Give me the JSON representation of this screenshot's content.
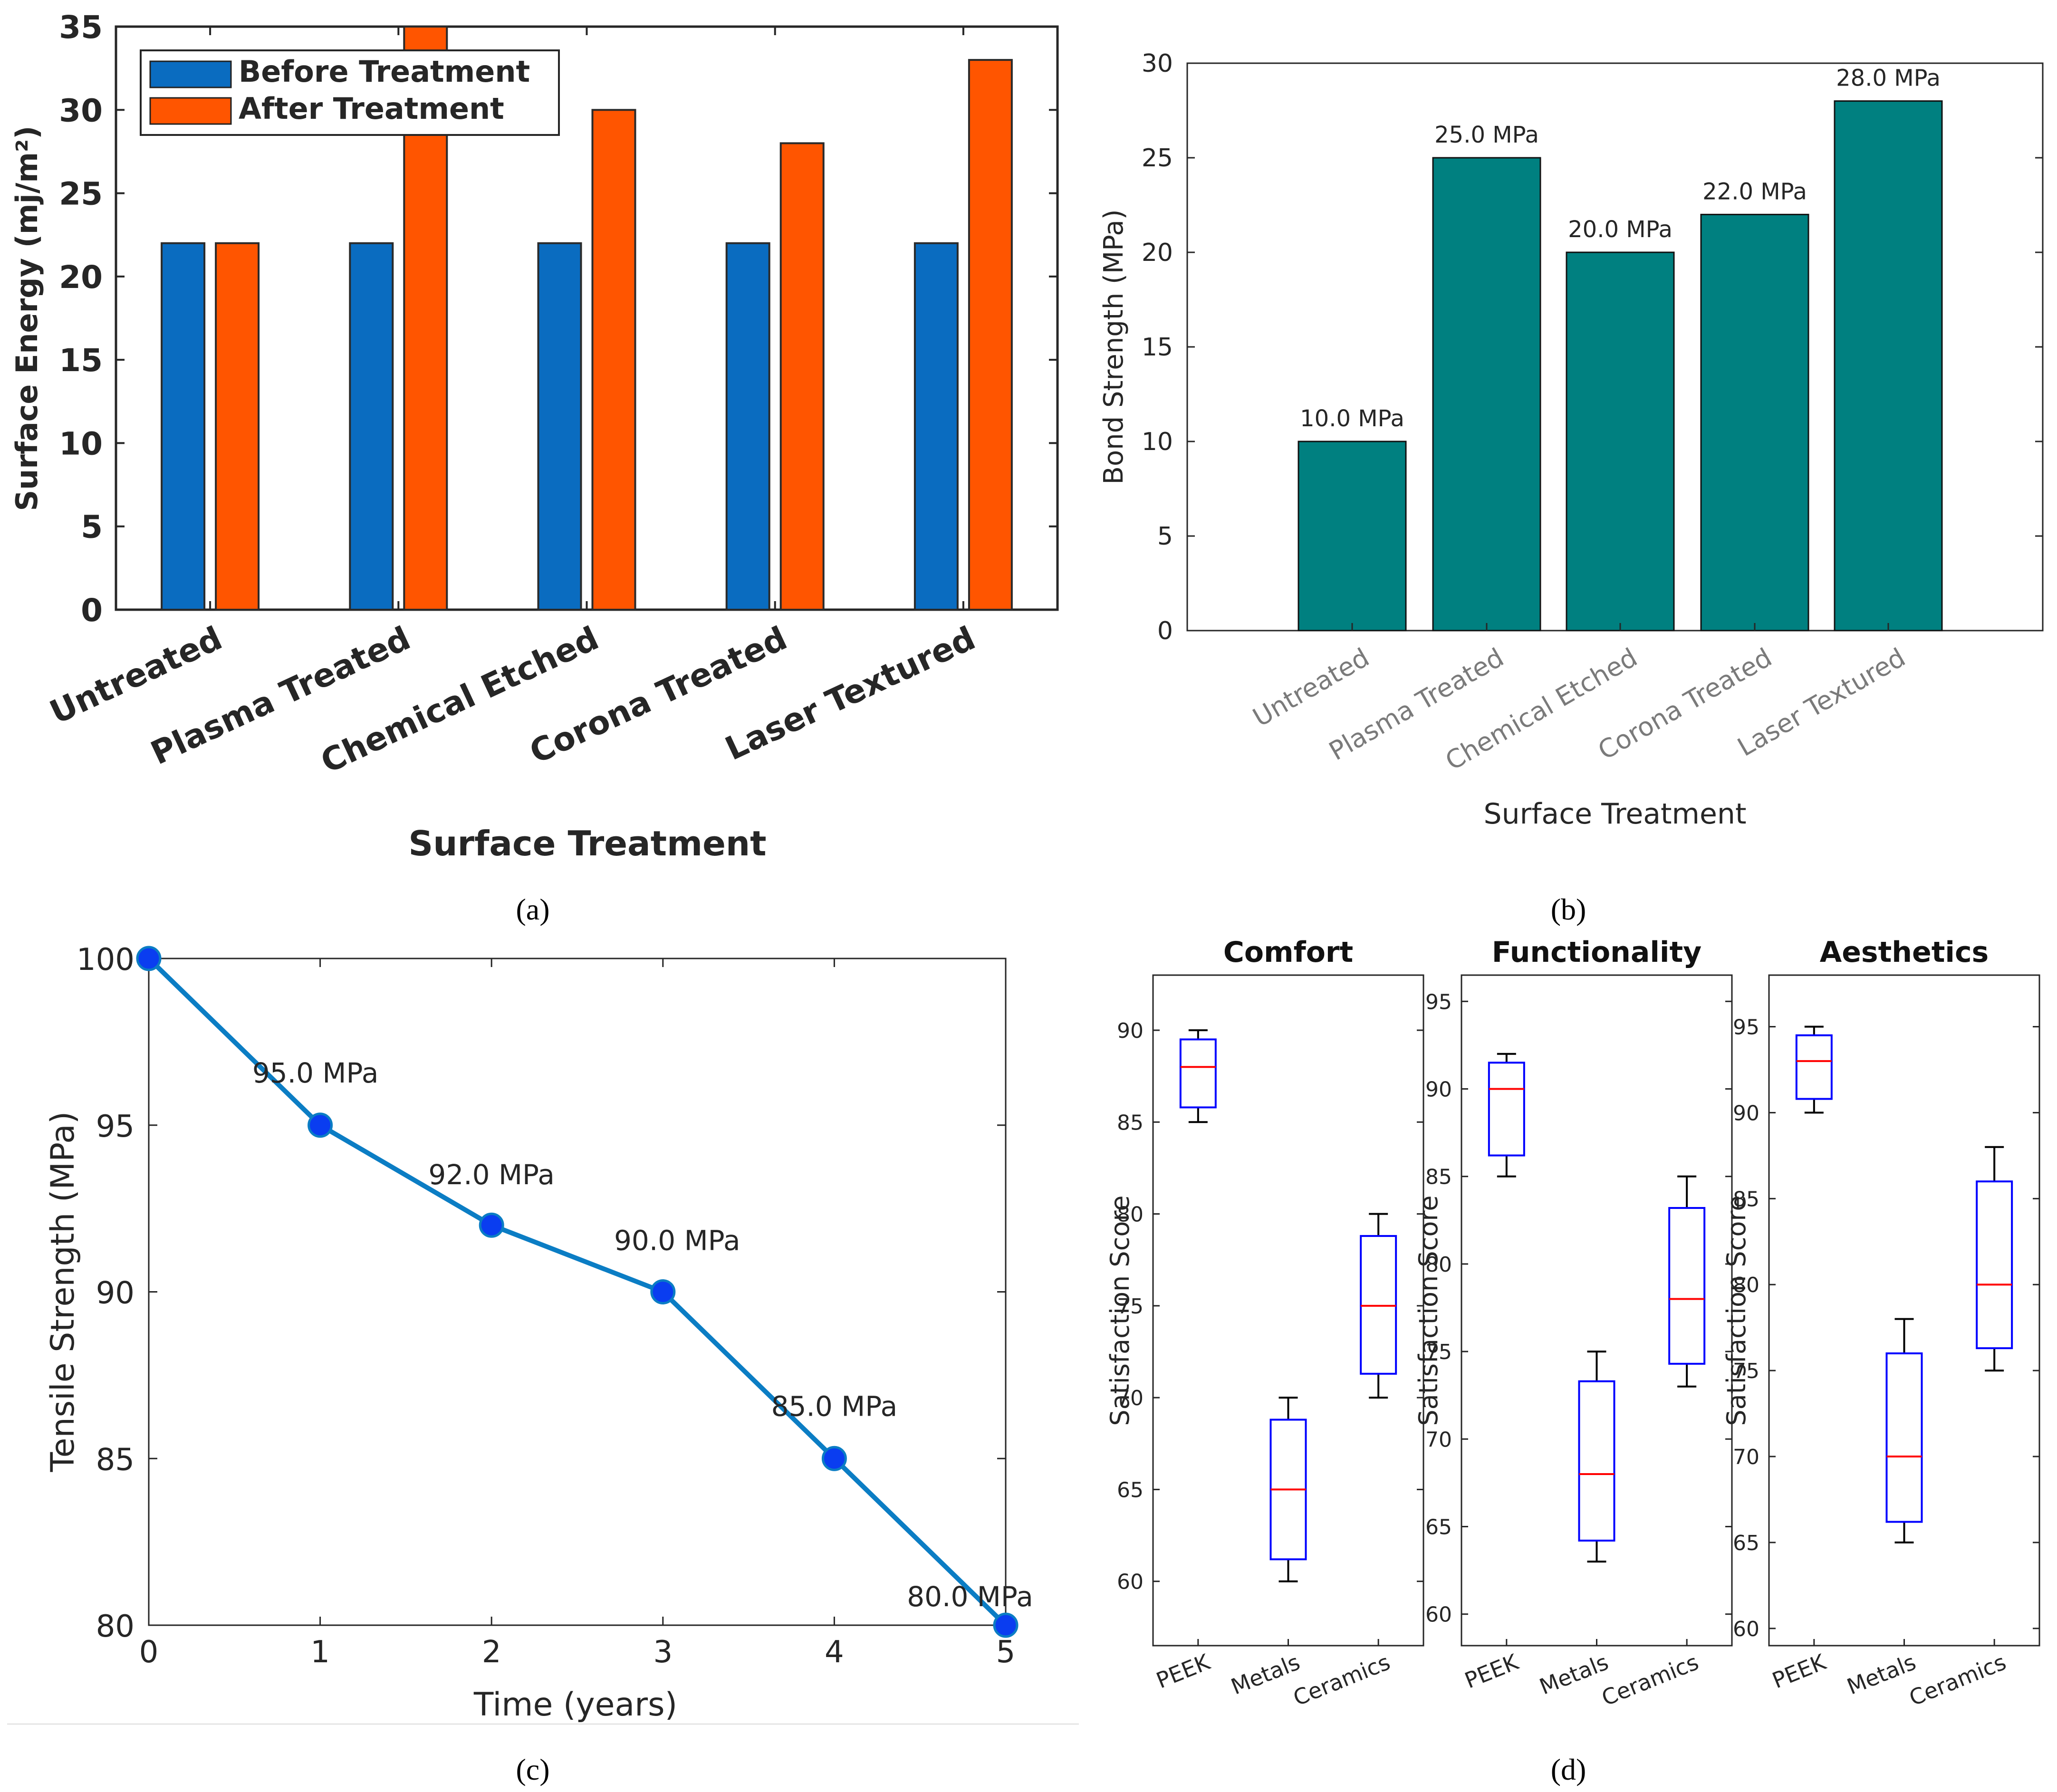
{
  "colors": {
    "before": "#0a6cc0",
    "after": "#ff5500",
    "bond": "#008080",
    "line": "#0b7dc4",
    "marker": "#0a3df0",
    "box": "#0000ff",
    "median": "#ff0000"
  },
  "panel_labels": {
    "a": "(a)",
    "b": "(b)",
    "c": "(c)",
    "d": "(d)"
  },
  "chart_data": [
    {
      "id": "a",
      "type": "bar",
      "title": "",
      "xlabel": "Surface Treatment",
      "ylabel": "Surface Energy (mj/m²)",
      "categories": [
        "Untreated",
        "Plasma Treated",
        "Chemical Etched",
        "Corona Treated",
        "Laser Textured"
      ],
      "series": [
        {
          "name": "Before Treatment",
          "values": [
            22,
            22,
            22,
            22,
            22
          ]
        },
        {
          "name": "After Treatment",
          "values": [
            22,
            35,
            30,
            28,
            33
          ]
        }
      ],
      "ylim": [
        0,
        35
      ],
      "yticks": [
        0,
        5,
        10,
        15,
        20,
        25,
        30,
        35
      ],
      "legend": "top-left"
    },
    {
      "id": "b",
      "type": "bar",
      "title": "",
      "xlabel": "Surface Treatment",
      "ylabel": "Bond Strength (MPa)",
      "categories": [
        "Untreated",
        "Plasma Treated",
        "Chemical Etched",
        "Corona Treated",
        "Laser Textured"
      ],
      "values": [
        10,
        25,
        20,
        22,
        28
      ],
      "data_labels": [
        "10.0 MPa",
        "25.0 MPa",
        "20.0 MPa",
        "22.0 MPa",
        "28.0 MPa"
      ],
      "ylim": [
        0,
        30
      ],
      "yticks": [
        0,
        5,
        10,
        15,
        20,
        25,
        30
      ]
    },
    {
      "id": "c",
      "type": "line",
      "title": "",
      "xlabel": "Time (years)",
      "ylabel": "Tensile Strength (MPa)",
      "x": [
        0,
        1,
        2,
        3,
        4,
        5
      ],
      "values": [
        100,
        95,
        92,
        90,
        85,
        80
      ],
      "data_labels": [
        "",
        "95.0 MPa",
        "92.0 MPa",
        "90.0 MPa",
        "85.0 MPa",
        "80.0 MPa"
      ],
      "xlim": [
        0,
        5
      ],
      "ylim": [
        80,
        100
      ],
      "xticks": [
        0,
        1,
        2,
        3,
        4,
        5
      ],
      "yticks": [
        80,
        85,
        90,
        95,
        100
      ]
    },
    {
      "id": "d",
      "type": "box",
      "ylabel": "Satisfaction Score",
      "subplots": [
        {
          "title": "Comfort",
          "ylim": [
            56.5,
            93
          ],
          "yticks": [
            60,
            65,
            70,
            75,
            80,
            85,
            90
          ],
          "categories": [
            "PEEK",
            "Metals",
            "Ceramics"
          ],
          "boxes": [
            {
              "min": 85,
              "q1": 85.8,
              "median": 88,
              "q3": 89.5,
              "max": 90
            },
            {
              "min": 60,
              "q1": 61.2,
              "median": 65,
              "q3": 68.8,
              "max": 70
            },
            {
              "min": 70,
              "q1": 71.3,
              "median": 75,
              "q3": 78.8,
              "max": 80
            }
          ]
        },
        {
          "title": "Functionality",
          "ylim": [
            58.2,
            96.5
          ],
          "yticks": [
            60,
            65,
            70,
            75,
            80,
            85,
            90,
            95
          ],
          "categories": [
            "PEEK",
            "Metals",
            "Ceramics"
          ],
          "boxes": [
            {
              "min": 85,
              "q1": 86.2,
              "median": 90,
              "q3": 91.5,
              "max": 92
            },
            {
              "min": 63,
              "q1": 64.2,
              "median": 68,
              "q3": 73.3,
              "max": 75
            },
            {
              "min": 73,
              "q1": 74.3,
              "median": 78,
              "q3": 83.2,
              "max": 85
            }
          ]
        },
        {
          "title": "Aesthetics",
          "ylim": [
            59,
            98
          ],
          "yticks": [
            60,
            65,
            70,
            75,
            80,
            85,
            90,
            95
          ],
          "categories": [
            "PEEK",
            "Metals",
            "Ceramics"
          ],
          "boxes": [
            {
              "min": 90,
              "q1": 90.8,
              "median": 93,
              "q3": 94.5,
              "max": 95
            },
            {
              "min": 65,
              "q1": 66.2,
              "median": 70,
              "q3": 76,
              "max": 78
            },
            {
              "min": 75,
              "q1": 76.3,
              "median": 80,
              "q3": 86,
              "max": 88
            }
          ]
        }
      ]
    }
  ]
}
